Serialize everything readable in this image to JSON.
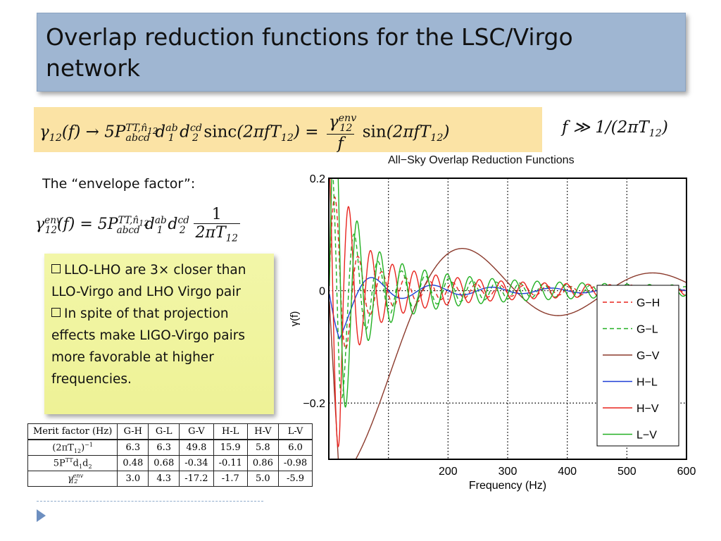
{
  "title": "Overlap reduction functions for the LSC/Virgo network",
  "envelope_label": "The “envelope factor”:",
  "notes": [
    "LLO-LHO are 3× closer than LLO-Virgo and LHO Virgo pair",
    "In spite of that projection effects make LIGO-Virgo pairs more favorable at higher frequencies."
  ],
  "table": {
    "headers": [
      "Merit factor (Hz)",
      "G-H",
      "G-L",
      "G-V",
      "H-L",
      "H-V",
      "L-V"
    ],
    "rows": [
      {
        "label": "(2πT12)−1",
        "values": [
          "6.3",
          "6.3",
          "49.8",
          "15.9",
          "5.8",
          "6.0"
        ]
      },
      {
        "label": "5PTT d1 d2",
        "values": [
          "0.48",
          "0.68",
          "-0.34",
          "-0.11",
          "0.86",
          "-0.98"
        ]
      },
      {
        "label": "γ12env",
        "values": [
          "3.0",
          "4.3",
          "-17.2",
          "-1.7",
          "5.0",
          "-5.9"
        ]
      }
    ]
  },
  "chart_data": {
    "type": "line",
    "title": "All−Sky Overlap Reduction Functions",
    "xlabel": "Frequency (Hz)",
    "ylabel": "γ(f)",
    "xlim": [
      0,
      600
    ],
    "ylim": [
      -0.3,
      0.2
    ],
    "xticks": [
      200,
      300,
      400,
      500,
      600
    ],
    "yticks": [
      0.2,
      0,
      -0.2
    ],
    "xtick_labels": [
      "200",
      "300",
      "400",
      "500",
      "600"
    ],
    "ytick_labels": [
      "0.2",
      "0",
      "−0.2"
    ],
    "grid": "dotted",
    "legend_position": "right",
    "series": [
      {
        "name": "G−H",
        "color": "#e8251f",
        "dash": "6,4",
        "env": 3.0,
        "T12_inv": 6.3,
        "phase": 0.0
      },
      {
        "name": "G−L",
        "color": "#22b022",
        "dash": "6,4",
        "env": 4.3,
        "T12_inv": 6.3,
        "phase": 1.0
      },
      {
        "name": "G−V",
        "color": "#8b3a2c",
        "dash": "",
        "env": -17.2,
        "T12_inv": 49.8,
        "phase": 0.0
      },
      {
        "name": "H−L",
        "color": "#1f3fd6",
        "dash": "",
        "env": -1.7,
        "T12_inv": 15.9,
        "phase": 0.0
      },
      {
        "name": "H−V",
        "color": "#e8251f",
        "dash": "",
        "env": 5.0,
        "T12_inv": 5.8,
        "phase": 2.0
      },
      {
        "name": "L−V",
        "color": "#22b022",
        "dash": "",
        "env": -5.9,
        "T12_inv": 6.0,
        "phase": 3.0
      }
    ]
  }
}
